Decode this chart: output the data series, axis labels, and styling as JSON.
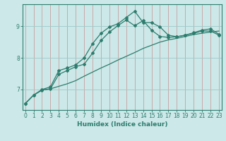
{
  "xlabel": "Humidex (Indice chaleur)",
  "x": [
    0,
    1,
    2,
    3,
    4,
    5,
    6,
    7,
    8,
    9,
    10,
    11,
    12,
    13,
    14,
    15,
    16,
    17,
    18,
    19,
    20,
    21,
    22,
    23
  ],
  "line1": [
    6.55,
    6.82,
    6.98,
    7.02,
    7.1,
    7.18,
    7.28,
    7.42,
    7.55,
    7.68,
    7.8,
    7.93,
    8.05,
    8.17,
    8.3,
    8.4,
    8.5,
    8.57,
    8.62,
    8.68,
    8.74,
    8.78,
    8.82,
    8.85
  ],
  "line2": [
    6.55,
    6.82,
    6.98,
    7.02,
    7.48,
    7.6,
    7.72,
    7.8,
    8.15,
    8.55,
    8.82,
    9.02,
    9.2,
    9.02,
    9.18,
    8.88,
    8.68,
    8.65,
    8.67,
    8.72,
    8.78,
    8.85,
    8.85,
    8.72
  ],
  "line3": [
    6.55,
    6.82,
    7.0,
    7.08,
    7.6,
    7.68,
    7.78,
    8.0,
    8.45,
    8.78,
    8.98,
    9.08,
    9.28,
    9.48,
    9.12,
    9.12,
    8.98,
    8.72,
    8.67,
    8.72,
    8.8,
    8.88,
    8.92,
    8.75
  ],
  "line_color": "#2d7d6e",
  "bg_color": "#cce8e8",
  "grid_color": "#9ec8c8",
  "ylim_min": 6.35,
  "ylim_max": 9.7,
  "yticks": [
    7,
    8,
    9
  ],
  "figw": 3.2,
  "figh": 2.0,
  "dpi": 100
}
